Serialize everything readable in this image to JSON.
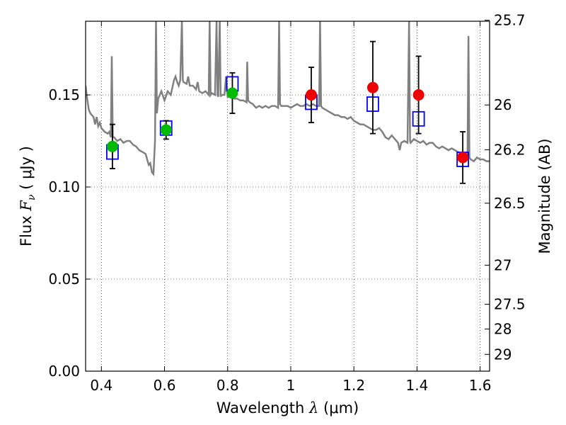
{
  "chart_data": {
    "type": "scatter",
    "xlabel": {
      "prefix": "Wavelength",
      "symbol": "λ",
      "unit": "(μm)"
    },
    "ylabel": {
      "prefix": "Flux",
      "symbol": "F",
      "subscript": "ν",
      "unit": "( μJy )"
    },
    "y2label": "Magnitude (AB)",
    "xlim": [
      0.35,
      1.63
    ],
    "ylim": [
      0.0,
      0.19
    ],
    "xticks": [
      "0.4",
      "0.6",
      "0.8",
      "1",
      "1.2",
      "1.4",
      "1.6"
    ],
    "yticks": [
      "0.00",
      "0.05",
      "0.10",
      "0.15"
    ],
    "mag_ticks": [
      "25.7",
      "26",
      "26.2",
      "26.5",
      "27",
      "27.5",
      "28",
      "29"
    ],
    "grid": true,
    "grid_style": "dotted",
    "colors": {
      "spectrum": "#808080",
      "model": "#0000ff",
      "obs_green": "#00bb00",
      "obs_red": "#ee0000",
      "errorbar": "#000000"
    },
    "spectrum": [
      [
        0.35,
        0.155
      ],
      [
        0.355,
        0.148
      ],
      [
        0.36,
        0.142
      ],
      [
        0.365,
        0.14
      ],
      [
        0.37,
        0.139
      ],
      [
        0.375,
        0.138
      ],
      [
        0.38,
        0.134
      ],
      [
        0.385,
        0.138
      ],
      [
        0.39,
        0.133
      ],
      [
        0.395,
        0.135
      ],
      [
        0.4,
        0.132
      ],
      [
        0.41,
        0.13
      ],
      [
        0.42,
        0.129
      ],
      [
        0.425,
        0.13
      ],
      [
        0.43,
        0.127
      ],
      [
        0.433,
        0.171
      ],
      [
        0.436,
        0.127
      ],
      [
        0.44,
        0.127
      ],
      [
        0.45,
        0.125
      ],
      [
        0.46,
        0.126
      ],
      [
        0.47,
        0.124
      ],
      [
        0.48,
        0.125
      ],
      [
        0.49,
        0.125
      ],
      [
        0.5,
        0.123
      ],
      [
        0.51,
        0.122
      ],
      [
        0.52,
        0.12
      ],
      [
        0.53,
        0.119
      ],
      [
        0.54,
        0.118
      ],
      [
        0.55,
        0.112
      ],
      [
        0.555,
        0.113
      ],
      [
        0.56,
        0.108
      ],
      [
        0.565,
        0.107
      ],
      [
        0.57,
        0.125
      ],
      [
        0.573,
        0.19
      ],
      [
        0.576,
        0.14
      ],
      [
        0.58,
        0.148
      ],
      [
        0.59,
        0.152
      ],
      [
        0.6,
        0.147
      ],
      [
        0.61,
        0.152
      ],
      [
        0.62,
        0.15
      ],
      [
        0.63,
        0.158
      ],
      [
        0.635,
        0.16
      ],
      [
        0.64,
        0.157
      ],
      [
        0.645,
        0.155
      ],
      [
        0.65,
        0.158
      ],
      [
        0.655,
        0.19
      ],
      [
        0.658,
        0.158
      ],
      [
        0.66,
        0.157
      ],
      [
        0.67,
        0.156
      ],
      [
        0.675,
        0.16
      ],
      [
        0.68,
        0.155
      ],
      [
        0.69,
        0.155
      ],
      [
        0.7,
        0.153
      ],
      [
        0.705,
        0.157
      ],
      [
        0.71,
        0.152
      ],
      [
        0.72,
        0.151
      ],
      [
        0.73,
        0.152
      ],
      [
        0.74,
        0.15
      ],
      [
        0.743,
        0.19
      ],
      [
        0.746,
        0.15
      ],
      [
        0.75,
        0.151
      ],
      [
        0.76,
        0.15
      ],
      [
        0.765,
        0.19
      ],
      [
        0.768,
        0.15
      ],
      [
        0.77,
        0.149
      ],
      [
        0.775,
        0.19
      ],
      [
        0.778,
        0.149
      ],
      [
        0.78,
        0.15
      ],
      [
        0.79,
        0.15
      ],
      [
        0.795,
        0.16
      ],
      [
        0.8,
        0.149
      ],
      [
        0.81,
        0.149
      ],
      [
        0.82,
        0.148
      ],
      [
        0.83,
        0.148
      ],
      [
        0.84,
        0.147
      ],
      [
        0.85,
        0.147
      ],
      [
        0.86,
        0.146
      ],
      [
        0.862,
        0.168
      ],
      [
        0.865,
        0.147
      ],
      [
        0.87,
        0.146
      ],
      [
        0.88,
        0.145
      ],
      [
        0.89,
        0.143
      ],
      [
        0.9,
        0.144
      ],
      [
        0.91,
        0.143
      ],
      [
        0.92,
        0.144
      ],
      [
        0.93,
        0.143
      ],
      [
        0.94,
        0.144
      ],
      [
        0.95,
        0.144
      ],
      [
        0.96,
        0.143
      ],
      [
        0.963,
        0.19
      ],
      [
        0.966,
        0.145
      ],
      [
        0.97,
        0.144
      ],
      [
        0.98,
        0.144
      ],
      [
        0.99,
        0.144
      ],
      [
        1.0,
        0.143
      ],
      [
        1.01,
        0.144
      ],
      [
        1.02,
        0.145
      ],
      [
        1.03,
        0.144
      ],
      [
        1.04,
        0.144
      ],
      [
        1.05,
        0.145
      ],
      [
        1.06,
        0.144
      ],
      [
        1.07,
        0.145
      ],
      [
        1.08,
        0.144
      ],
      [
        1.09,
        0.144
      ],
      [
        1.093,
        0.19
      ],
      [
        1.096,
        0.144
      ],
      [
        1.1,
        0.143
      ],
      [
        1.11,
        0.142
      ],
      [
        1.12,
        0.141
      ],
      [
        1.13,
        0.14
      ],
      [
        1.14,
        0.139
      ],
      [
        1.15,
        0.139
      ],
      [
        1.16,
        0.138
      ],
      [
        1.17,
        0.138
      ],
      [
        1.18,
        0.137
      ],
      [
        1.19,
        0.138
      ],
      [
        1.2,
        0.136
      ],
      [
        1.21,
        0.135
      ],
      [
        1.22,
        0.134
      ],
      [
        1.23,
        0.134
      ],
      [
        1.24,
        0.133
      ],
      [
        1.25,
        0.132
      ],
      [
        1.26,
        0.131
      ],
      [
        1.27,
        0.131
      ],
      [
        1.28,
        0.132
      ],
      [
        1.29,
        0.13
      ],
      [
        1.3,
        0.127
      ],
      [
        1.31,
        0.126
      ],
      [
        1.32,
        0.128
      ],
      [
        1.33,
        0.126
      ],
      [
        1.34,
        0.124
      ],
      [
        1.345,
        0.12
      ],
      [
        1.35,
        0.124
      ],
      [
        1.36,
        0.125
      ],
      [
        1.37,
        0.124
      ],
      [
        1.375,
        0.19
      ],
      [
        1.378,
        0.125
      ],
      [
        1.38,
        0.124
      ],
      [
        1.39,
        0.126
      ],
      [
        1.4,
        0.125
      ],
      [
        1.41,
        0.124
      ],
      [
        1.42,
        0.125
      ],
      [
        1.43,
        0.123
      ],
      [
        1.44,
        0.124
      ],
      [
        1.45,
        0.124
      ],
      [
        1.46,
        0.122
      ],
      [
        1.47,
        0.121
      ],
      [
        1.48,
        0.122
      ],
      [
        1.49,
        0.121
      ],
      [
        1.5,
        0.12
      ],
      [
        1.51,
        0.121
      ],
      [
        1.52,
        0.12
      ],
      [
        1.53,
        0.119
      ],
      [
        1.54,
        0.118
      ],
      [
        1.55,
        0.117
      ],
      [
        1.56,
        0.116
      ],
      [
        1.563,
        0.182
      ],
      [
        1.566,
        0.116
      ],
      [
        1.57,
        0.115
      ],
      [
        1.58,
        0.114
      ],
      [
        1.59,
        0.116
      ],
      [
        1.6,
        0.115
      ],
      [
        1.61,
        0.115
      ],
      [
        1.62,
        0.114
      ],
      [
        1.63,
        0.114
      ]
    ],
    "model_fluxes": [
      {
        "x": 0.435,
        "y": 0.119
      },
      {
        "x": 0.605,
        "y": 0.132
      },
      {
        "x": 0.815,
        "y": 0.156
      },
      {
        "x": 1.065,
        "y": 0.146
      },
      {
        "x": 1.26,
        "y": 0.145
      },
      {
        "x": 1.405,
        "y": 0.137
      },
      {
        "x": 1.545,
        "y": 0.115
      }
    ],
    "observed": [
      {
        "x": 0.435,
        "y": 0.122,
        "err": 0.012,
        "color": "#00bb00"
      },
      {
        "x": 0.605,
        "y": 0.131,
        "err": 0.005,
        "color": "#00bb00"
      },
      {
        "x": 0.815,
        "y": 0.151,
        "err": 0.011,
        "color": "#00bb00"
      },
      {
        "x": 1.065,
        "y": 0.15,
        "err": 0.015,
        "color": "#ee0000"
      },
      {
        "x": 1.26,
        "y": 0.154,
        "err": 0.025,
        "color": "#ee0000"
      },
      {
        "x": 1.405,
        "y": 0.15,
        "err": 0.021,
        "color": "#ee0000"
      },
      {
        "x": 1.545,
        "y": 0.116,
        "err": 0.014,
        "color": "#ee0000"
      }
    ]
  }
}
